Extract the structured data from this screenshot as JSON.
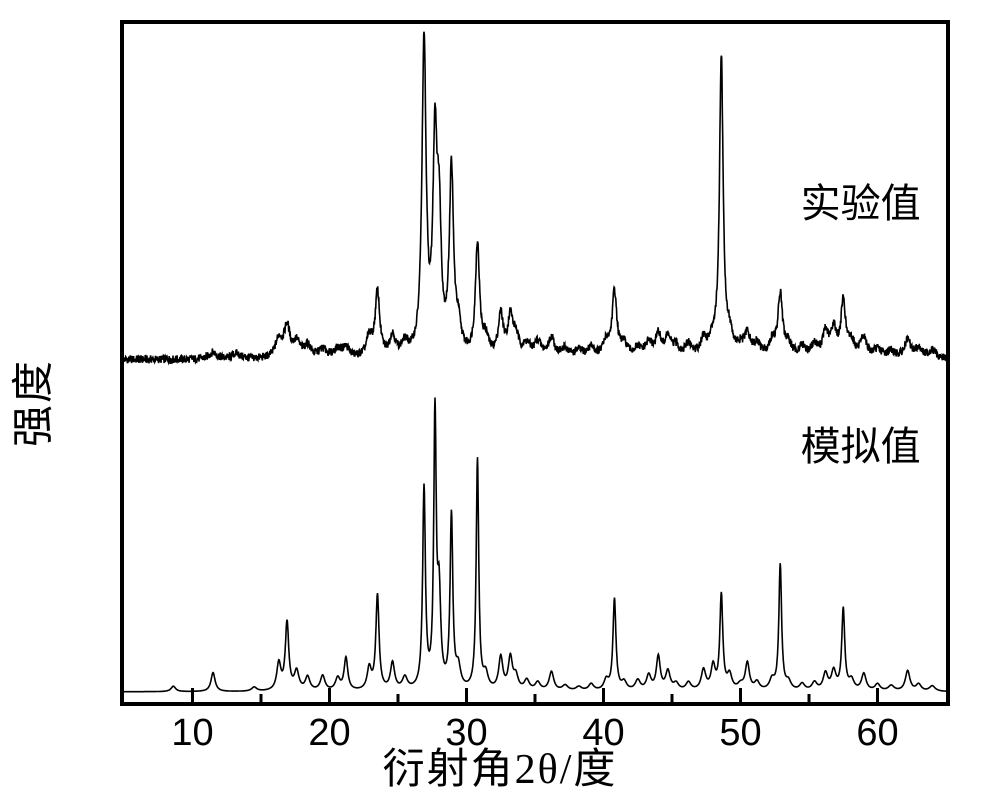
{
  "chart": {
    "type": "line-xrd",
    "background_color": "#ffffff",
    "border_color": "#000000",
    "border_width": 4,
    "line_color": "#000000",
    "line_width": 1.6,
    "ylabel": "强度",
    "xlabel": "衍射角2θ/度",
    "label_fontsize": 42,
    "tick_fontsize": 38,
    "series_label_fontsize": 40,
    "x_tick_length_major": 14,
    "x_tick_length_minor": 8,
    "x_ticks_major": [
      10,
      20,
      30,
      40,
      50,
      60
    ],
    "x_ticks_minor": [
      15,
      25,
      35,
      45,
      55
    ],
    "xlim": [
      5,
      65
    ],
    "y_split": 0.5,
    "series": [
      {
        "label": "实验值",
        "label_x_frac": 0.82,
        "label_y_frac": 0.22,
        "baseline_frac": 0.495,
        "noise": 0.006,
        "peaks": [
          {
            "x": 11.5,
            "h": 0.01,
            "w": 0.35
          },
          {
            "x": 13.2,
            "h": 0.008,
            "w": 0.35
          },
          {
            "x": 16.3,
            "h": 0.028,
            "w": 0.3
          },
          {
            "x": 16.9,
            "h": 0.045,
            "w": 0.25
          },
          {
            "x": 17.6,
            "h": 0.022,
            "w": 0.3
          },
          {
            "x": 18.4,
            "h": 0.018,
            "w": 0.3
          },
          {
            "x": 19.5,
            "h": 0.012,
            "w": 0.35
          },
          {
            "x": 20.6,
            "h": 0.012,
            "w": 0.35
          },
          {
            "x": 21.2,
            "h": 0.014,
            "w": 0.3
          },
          {
            "x": 22.9,
            "h": 0.028,
            "w": 0.25
          },
          {
            "x": 23.5,
            "h": 0.095,
            "w": 0.2
          },
          {
            "x": 24.6,
            "h": 0.03,
            "w": 0.25
          },
          {
            "x": 25.5,
            "h": 0.018,
            "w": 0.3
          },
          {
            "x": 26.9,
            "h": 0.46,
            "w": 0.18
          },
          {
            "x": 27.7,
            "h": 0.3,
            "w": 0.18
          },
          {
            "x": 28.0,
            "h": 0.18,
            "w": 0.18
          },
          {
            "x": 28.9,
            "h": 0.27,
            "w": 0.18
          },
          {
            "x": 29.4,
            "h": 0.038,
            "w": 0.25
          },
          {
            "x": 30.8,
            "h": 0.165,
            "w": 0.18
          },
          {
            "x": 31.4,
            "h": 0.025,
            "w": 0.25
          },
          {
            "x": 32.5,
            "h": 0.06,
            "w": 0.22
          },
          {
            "x": 33.2,
            "h": 0.055,
            "w": 0.22
          },
          {
            "x": 33.6,
            "h": 0.028,
            "w": 0.25
          },
          {
            "x": 34.4,
            "h": 0.018,
            "w": 0.3
          },
          {
            "x": 35.2,
            "h": 0.022,
            "w": 0.3
          },
          {
            "x": 36.2,
            "h": 0.028,
            "w": 0.28
          },
          {
            "x": 37.2,
            "h": 0.012,
            "w": 0.35
          },
          {
            "x": 38.2,
            "h": 0.01,
            "w": 0.35
          },
          {
            "x": 39.1,
            "h": 0.015,
            "w": 0.3
          },
          {
            "x": 40.2,
            "h": 0.022,
            "w": 0.28
          },
          {
            "x": 40.8,
            "h": 0.095,
            "w": 0.2
          },
          {
            "x": 41.5,
            "h": 0.018,
            "w": 0.3
          },
          {
            "x": 42.5,
            "h": 0.012,
            "w": 0.35
          },
          {
            "x": 43.3,
            "h": 0.02,
            "w": 0.3
          },
          {
            "x": 44.0,
            "h": 0.032,
            "w": 0.25
          },
          {
            "x": 44.7,
            "h": 0.028,
            "w": 0.25
          },
          {
            "x": 45.3,
            "h": 0.015,
            "w": 0.3
          },
          {
            "x": 46.2,
            "h": 0.018,
            "w": 0.3
          },
          {
            "x": 47.3,
            "h": 0.025,
            "w": 0.28
          },
          {
            "x": 48.0,
            "h": 0.022,
            "w": 0.28
          },
          {
            "x": 48.6,
            "h": 0.44,
            "w": 0.16
          },
          {
            "x": 49.2,
            "h": 0.028,
            "w": 0.28
          },
          {
            "x": 50.0,
            "h": 0.012,
            "w": 0.35
          },
          {
            "x": 50.5,
            "h": 0.03,
            "w": 0.25
          },
          {
            "x": 51.2,
            "h": 0.018,
            "w": 0.3
          },
          {
            "x": 52.3,
            "h": 0.022,
            "w": 0.28
          },
          {
            "x": 52.9,
            "h": 0.09,
            "w": 0.2
          },
          {
            "x": 53.5,
            "h": 0.018,
            "w": 0.3
          },
          {
            "x": 54.5,
            "h": 0.015,
            "w": 0.3
          },
          {
            "x": 55.4,
            "h": 0.018,
            "w": 0.3
          },
          {
            "x": 56.2,
            "h": 0.035,
            "w": 0.25
          },
          {
            "x": 56.8,
            "h": 0.04,
            "w": 0.25
          },
          {
            "x": 57.5,
            "h": 0.08,
            "w": 0.2
          },
          {
            "x": 58.1,
            "h": 0.022,
            "w": 0.28
          },
          {
            "x": 59.0,
            "h": 0.028,
            "w": 0.28
          },
          {
            "x": 60.0,
            "h": 0.012,
            "w": 0.35
          },
          {
            "x": 61.0,
            "h": 0.01,
            "w": 0.35
          },
          {
            "x": 62.2,
            "h": 0.025,
            "w": 0.28
          },
          {
            "x": 63.0,
            "h": 0.015,
            "w": 0.3
          },
          {
            "x": 64.0,
            "h": 0.012,
            "w": 0.35
          }
        ]
      },
      {
        "label": "模拟值",
        "label_x_frac": 0.82,
        "label_y_frac": 0.575,
        "baseline_frac": 0.985,
        "noise": 0.0,
        "peaks": [
          {
            "x": 8.6,
            "h": 0.008,
            "w": 0.2
          },
          {
            "x": 11.5,
            "h": 0.028,
            "w": 0.18
          },
          {
            "x": 14.5,
            "h": 0.006,
            "w": 0.22
          },
          {
            "x": 16.3,
            "h": 0.04,
            "w": 0.18
          },
          {
            "x": 16.9,
            "h": 0.1,
            "w": 0.15
          },
          {
            "x": 17.6,
            "h": 0.028,
            "w": 0.2
          },
          {
            "x": 18.4,
            "h": 0.02,
            "w": 0.2
          },
          {
            "x": 19.5,
            "h": 0.022,
            "w": 0.2
          },
          {
            "x": 20.6,
            "h": 0.018,
            "w": 0.2
          },
          {
            "x": 21.2,
            "h": 0.048,
            "w": 0.16
          },
          {
            "x": 22.9,
            "h": 0.032,
            "w": 0.18
          },
          {
            "x": 23.5,
            "h": 0.14,
            "w": 0.14
          },
          {
            "x": 24.6,
            "h": 0.04,
            "w": 0.18
          },
          {
            "x": 25.5,
            "h": 0.018,
            "w": 0.22
          },
          {
            "x": 26.9,
            "h": 0.295,
            "w": 0.12
          },
          {
            "x": 27.7,
            "h": 0.4,
            "w": 0.11
          },
          {
            "x": 28.0,
            "h": 0.13,
            "w": 0.14
          },
          {
            "x": 28.9,
            "h": 0.255,
            "w": 0.12
          },
          {
            "x": 29.4,
            "h": 0.03,
            "w": 0.2
          },
          {
            "x": 30.8,
            "h": 0.34,
            "w": 0.11
          },
          {
            "x": 31.4,
            "h": 0.022,
            "w": 0.2
          },
          {
            "x": 32.5,
            "h": 0.048,
            "w": 0.18
          },
          {
            "x": 33.2,
            "h": 0.047,
            "w": 0.18
          },
          {
            "x": 33.6,
            "h": 0.02,
            "w": 0.2
          },
          {
            "x": 34.4,
            "h": 0.015,
            "w": 0.22
          },
          {
            "x": 35.2,
            "h": 0.012,
            "w": 0.22
          },
          {
            "x": 36.2,
            "h": 0.028,
            "w": 0.2
          },
          {
            "x": 37.2,
            "h": 0.008,
            "w": 0.25
          },
          {
            "x": 38.2,
            "h": 0.006,
            "w": 0.25
          },
          {
            "x": 39.1,
            "h": 0.01,
            "w": 0.22
          },
          {
            "x": 40.2,
            "h": 0.015,
            "w": 0.2
          },
          {
            "x": 40.8,
            "h": 0.135,
            "w": 0.13
          },
          {
            "x": 41.5,
            "h": 0.012,
            "w": 0.22
          },
          {
            "x": 42.5,
            "h": 0.015,
            "w": 0.22
          },
          {
            "x": 43.3,
            "h": 0.022,
            "w": 0.2
          },
          {
            "x": 44.0,
            "h": 0.05,
            "w": 0.17
          },
          {
            "x": 44.7,
            "h": 0.028,
            "w": 0.2
          },
          {
            "x": 45.3,
            "h": 0.01,
            "w": 0.22
          },
          {
            "x": 46.2,
            "h": 0.012,
            "w": 0.22
          },
          {
            "x": 47.3,
            "h": 0.03,
            "w": 0.2
          },
          {
            "x": 48.0,
            "h": 0.035,
            "w": 0.18
          },
          {
            "x": 48.6,
            "h": 0.14,
            "w": 0.13
          },
          {
            "x": 49.2,
            "h": 0.022,
            "w": 0.2
          },
          {
            "x": 50.0,
            "h": 0.008,
            "w": 0.25
          },
          {
            "x": 50.5,
            "h": 0.04,
            "w": 0.18
          },
          {
            "x": 51.2,
            "h": 0.012,
            "w": 0.22
          },
          {
            "x": 52.3,
            "h": 0.015,
            "w": 0.22
          },
          {
            "x": 52.9,
            "h": 0.185,
            "w": 0.12
          },
          {
            "x": 53.5,
            "h": 0.012,
            "w": 0.22
          },
          {
            "x": 54.5,
            "h": 0.01,
            "w": 0.22
          },
          {
            "x": 55.4,
            "h": 0.012,
            "w": 0.22
          },
          {
            "x": 56.2,
            "h": 0.025,
            "w": 0.2
          },
          {
            "x": 56.8,
            "h": 0.028,
            "w": 0.2
          },
          {
            "x": 57.5,
            "h": 0.12,
            "w": 0.13
          },
          {
            "x": 58.1,
            "h": 0.015,
            "w": 0.22
          },
          {
            "x": 59.0,
            "h": 0.025,
            "w": 0.2
          },
          {
            "x": 60.0,
            "h": 0.01,
            "w": 0.22
          },
          {
            "x": 61.0,
            "h": 0.008,
            "w": 0.25
          },
          {
            "x": 62.2,
            "h": 0.03,
            "w": 0.2
          },
          {
            "x": 63.0,
            "h": 0.01,
            "w": 0.22
          },
          {
            "x": 64.0,
            "h": 0.008,
            "w": 0.25
          }
        ]
      }
    ]
  }
}
